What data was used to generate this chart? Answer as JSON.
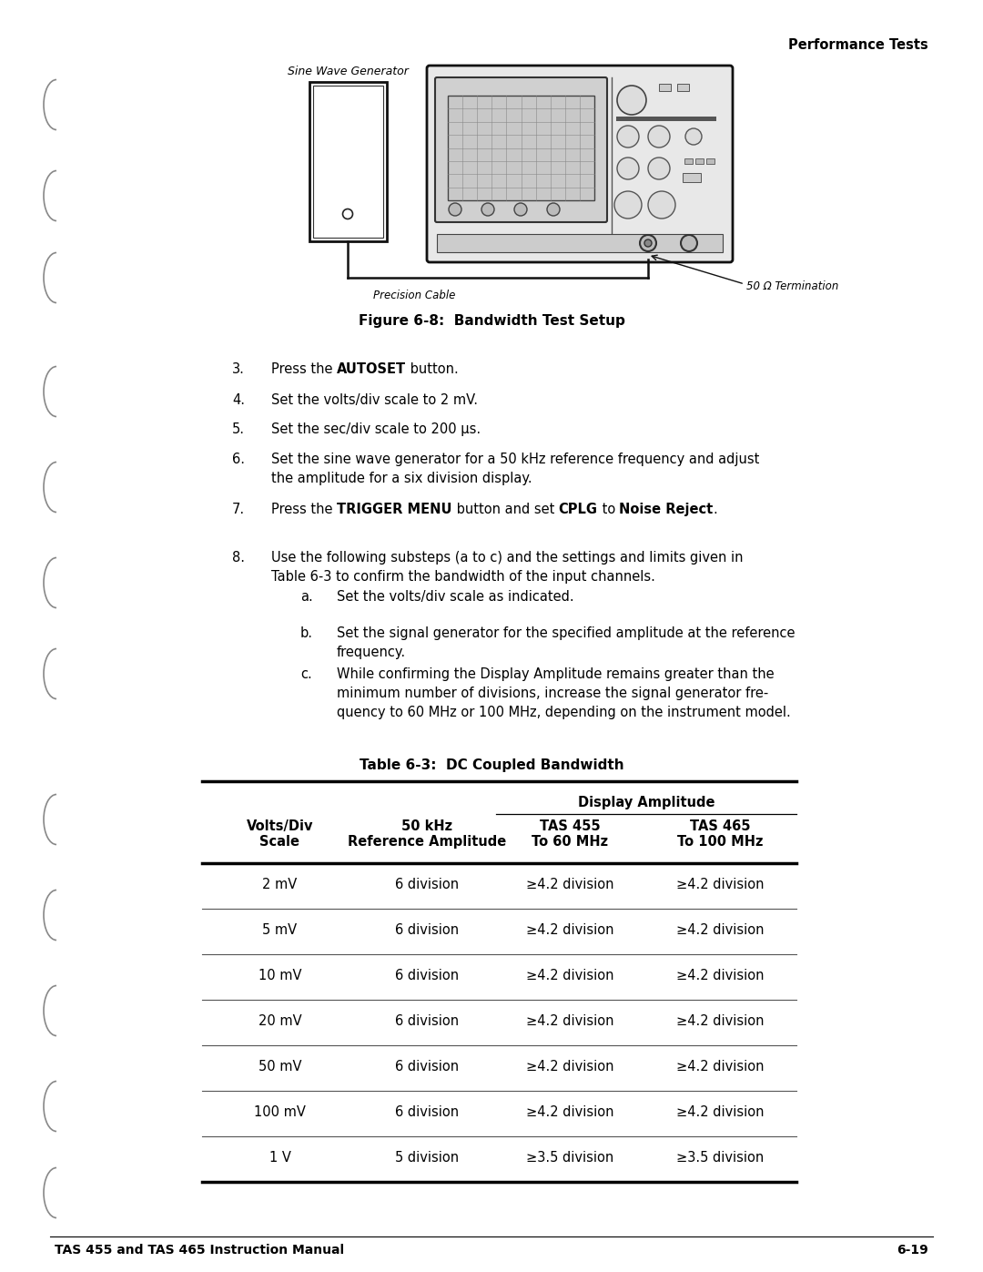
{
  "page_title_right": "Performance Tests",
  "figure_caption": "Figure 6-8:  Bandwidth Test Setup",
  "label_sine_wave": "Sine Wave Generator",
  "label_precision_cable": "Precision Cable",
  "label_termination": "50 Ω Termination",
  "steps": [
    {
      "num": "3.",
      "parts": [
        {
          "t": "Press the ",
          "b": false
        },
        {
          "t": "AUTOSET",
          "b": true
        },
        {
          "t": " button.",
          "b": false
        }
      ]
    },
    {
      "num": "4.",
      "parts": [
        {
          "t": "Set the volts/div scale to 2 mV.",
          "b": false
        }
      ]
    },
    {
      "num": "5.",
      "parts": [
        {
          "t": "Set the sec/div scale to 200 μs.",
          "b": false
        }
      ]
    },
    {
      "num": "6.",
      "parts": [
        {
          "t": "Set the sine wave generator for a 50 kHz reference frequency and adjust\nthe amplitude for a six division display.",
          "b": false
        }
      ]
    },
    {
      "num": "7.",
      "parts": [
        {
          "t": "Press the ",
          "b": false
        },
        {
          "t": "TRIGGER MENU",
          "b": true
        },
        {
          "t": " button and set ",
          "b": false
        },
        {
          "t": "CPLG",
          "b": true
        },
        {
          "t": " to ",
          "b": false
        },
        {
          "t": "Noise Reject",
          "b": true
        },
        {
          "t": ".",
          "b": false
        }
      ]
    },
    {
      "num": "8.",
      "parts": [
        {
          "t": "Use the following substeps (a to c) and the settings and limits given in\nTable 6-3 to confirm the bandwidth of the input channels.",
          "b": false
        }
      ]
    }
  ],
  "substeps": [
    {
      "letter": "a.",
      "text": "Set the volts/div scale as indicated."
    },
    {
      "letter": "b.",
      "text": "Set the signal generator for the specified amplitude at the reference\nfrequency."
    },
    {
      "letter": "c.",
      "text": "While confirming the Display Amplitude remains greater than the\nminimum number of divisions, increase the signal generator fre-\nquency to 60 MHz or 100 MHz, depending on the instrument model."
    }
  ],
  "table_title": "Table 6-3:  DC Coupled Bandwidth",
  "col_span_label": "Display Amplitude",
  "col_headers": [
    "Volts/Div\nScale",
    "50 kHz\nReference Amplitude",
    "TAS 455\nTo 60 MHz",
    "TAS 465\nTo 100 MHz"
  ],
  "table_rows": [
    [
      "2 mV",
      "6 division",
      "≥4.2 division",
      "≥4.2 division"
    ],
    [
      "5 mV",
      "6 division",
      "≥4.2 division",
      "≥4.2 division"
    ],
    [
      "10 mV",
      "6 division",
      "≥4.2 division",
      "≥4.2 division"
    ],
    [
      "20 mV",
      "6 division",
      "≥4.2 division",
      "≥4.2 division"
    ],
    [
      "50 mV",
      "6 division",
      "≥4.2 division",
      "≥4.2 division"
    ],
    [
      "100 mV",
      "6 division",
      "≥4.2 division",
      "≥4.2 division"
    ],
    [
      "1 V",
      "5 division",
      "≥3.5 division",
      "≥3.5 division"
    ]
  ],
  "footer_left": "TAS 455 and TAS 465 Instruction Manual",
  "footer_right": "6-19"
}
